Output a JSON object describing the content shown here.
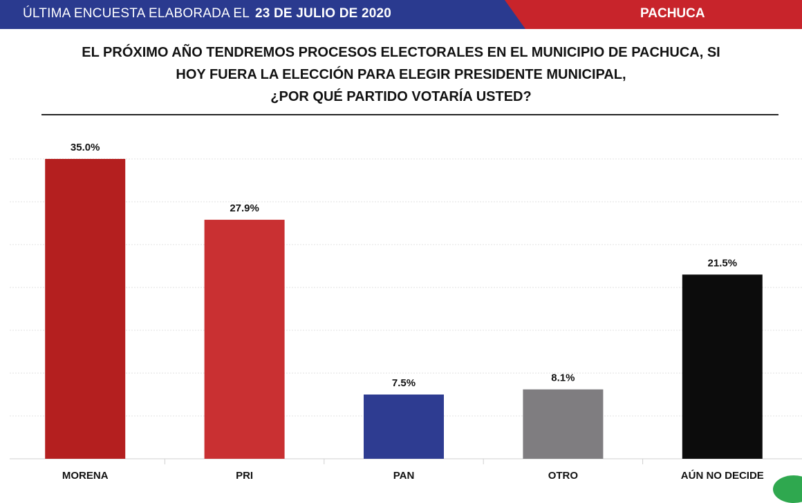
{
  "header": {
    "left_text": "ÚLTIMA ENCUESTA ELABORADA EL",
    "date": "23 DE JULIO DE 2020",
    "location": "PACHUCA",
    "colors": {
      "blue": "#2a3a8f",
      "red": "#c8242b"
    }
  },
  "question": {
    "line1": "EL PRÓXIMO AÑO TENDREMOS PROCESOS ELECTORALES EN EL MUNICIPIO DE PACHUCA, SI",
    "line2": "HOY FUERA LA ELECCIÓN PARA ELEGIR PRESIDENTE MUNICIPAL,",
    "line3": "¿POR QUÉ PARTIDO VOTARÍA USTED?"
  },
  "chart_data": {
    "type": "bar",
    "categories": [
      "MORENA",
      "PRI",
      "PAN",
      "OTRO",
      "AÚN NO DECIDE"
    ],
    "values": [
      35.0,
      27.9,
      7.5,
      8.1,
      21.5
    ],
    "value_labels": [
      "35.0%",
      "27.9%",
      "7.5%",
      "8.1%",
      "21.5%"
    ],
    "colors": [
      "#b41f1f",
      "#c93032",
      "#2e3c91",
      "#7f7d80",
      "#0c0c0c"
    ],
    "ylim": [
      0,
      35
    ],
    "grid": true,
    "legend": "none"
  }
}
